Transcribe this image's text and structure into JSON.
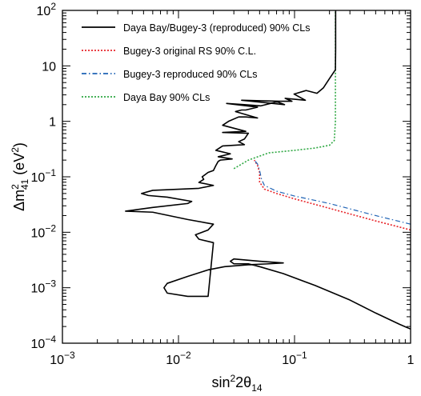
{
  "chart_data": {
    "type": "line",
    "xlabel": "sin²2θ₁₄",
    "ylabel": "Δm²₄₁ (eV²)",
    "xscale": "log",
    "yscale": "log",
    "xlim": [
      0.001,
      1
    ],
    "ylim": [
      0.0001,
      100
    ],
    "x_ticks": [
      {
        "value": 0.001,
        "base": "10",
        "exp": "−3"
      },
      {
        "value": 0.01,
        "base": "10",
        "exp": "−2"
      },
      {
        "value": 0.1,
        "base": "10",
        "exp": "−1"
      },
      {
        "value": 1,
        "base": "1",
        "exp": ""
      }
    ],
    "y_ticks": [
      {
        "value": 0.0001,
        "base": "10",
        "exp": "−4"
      },
      {
        "value": 0.001,
        "base": "10",
        "exp": "−3"
      },
      {
        "value": 0.01,
        "base": "10",
        "exp": "−2"
      },
      {
        "value": 0.1,
        "base": "10",
        "exp": "−1"
      },
      {
        "value": 1,
        "base": "1",
        "exp": ""
      },
      {
        "value": 10,
        "base": "10",
        "exp": ""
      },
      {
        "value": 100,
        "base": "10",
        "exp": "2"
      }
    ],
    "legend_position": "top-right",
    "series": [
      {
        "name": "Daya Bay/Bugey-3 (reproduced) 90% CLs",
        "color": "#000000",
        "style": "solid",
        "x": [
          1,
          0.8,
          0.5,
          0.3,
          0.15,
          0.08,
          0.05,
          0.04,
          0.035,
          0.03,
          0.028,
          0.03,
          0.05,
          0.08,
          0.06,
          0.04,
          0.025,
          0.018,
          0.012,
          0.008,
          0.0075,
          0.008,
          0.012,
          0.018,
          0.02,
          0.015,
          0.014,
          0.018,
          0.02,
          0.012,
          0.006,
          0.0035,
          0.006,
          0.012,
          0.013,
          0.008,
          0.0055,
          0.0048,
          0.006,
          0.015,
          0.02,
          0.015,
          0.0165,
          0.016,
          0.018,
          0.02,
          0.021,
          0.022,
          0.023,
          0.029,
          0.022,
          0.028,
          0.021,
          0.024,
          0.037,
          0.033,
          0.037,
          0.04,
          0.024,
          0.038,
          0.024,
          0.027,
          0.033,
          0.038,
          0.048,
          0.031,
          0.035,
          0.038,
          0.048,
          0.026,
          0.037,
          0.051,
          0.074,
          0.035,
          0.082,
          0.069,
          0.095,
          0.083,
          0.124,
          0.099,
          0.126,
          0.156,
          0.177,
          0.199,
          0.225,
          0.226,
          0.226,
          0.226
        ],
        "y": [
          0.00018,
          0.00022,
          0.00035,
          0.0006,
          0.0011,
          0.0018,
          0.0024,
          0.0027,
          0.0027,
          0.0027,
          0.003,
          0.0033,
          0.003,
          0.0028,
          0.0027,
          0.0026,
          0.0024,
          0.0021,
          0.0016,
          0.0012,
          0.001,
          0.0008,
          0.0007,
          0.0007,
          0.0065,
          0.0075,
          0.009,
          0.011,
          0.014,
          0.017,
          0.023,
          0.024,
          0.028,
          0.033,
          0.036,
          0.043,
          0.046,
          0.05,
          0.057,
          0.062,
          0.07,
          0.079,
          0.09,
          0.1,
          0.12,
          0.13,
          0.16,
          0.19,
          0.2,
          0.21,
          0.23,
          0.26,
          0.3,
          0.36,
          0.38,
          0.43,
          0.48,
          0.61,
          0.63,
          0.66,
          0.85,
          1.0,
          1.2,
          1.2,
          1.15,
          1.5,
          1.6,
          1.6,
          1.8,
          2.1,
          2.0,
          1.9,
          2.3,
          2.4,
          2.0,
          2.3,
          2.3,
          2.6,
          2.4,
          3.1,
          3.6,
          3.2,
          4.0,
          5.8,
          8.5,
          20,
          50,
          100
        ]
      },
      {
        "name": "Bugey-3 original RS 90% C.L.",
        "color": "#e8262b",
        "style": "dotted",
        "x": [
          1,
          0.5,
          0.2,
          0.1,
          0.07,
          0.055,
          0.05,
          0.05,
          0.048,
          0.045
        ],
        "y": [
          0.011,
          0.016,
          0.027,
          0.04,
          0.05,
          0.06,
          0.08,
          0.12,
          0.16,
          0.2
        ]
      },
      {
        "name": "Bugey-3 reproduced 90% CLs",
        "color": "#1f63b5",
        "style": "dashdot",
        "x": [
          1,
          0.5,
          0.2,
          0.1,
          0.07,
          0.055,
          0.052,
          0.05,
          0.048,
          0.045
        ],
        "y": [
          0.014,
          0.02,
          0.033,
          0.045,
          0.055,
          0.07,
          0.09,
          0.13,
          0.17,
          0.2
        ]
      },
      {
        "name": "Daya Bay 90% CLs",
        "color": "#2fa843",
        "style": "dotted",
        "x": [
          0.03,
          0.04,
          0.06,
          0.1,
          0.15,
          0.2,
          0.22,
          0.225,
          0.225,
          0.225,
          0.225
        ],
        "y": [
          0.14,
          0.2,
          0.27,
          0.3,
          0.33,
          0.37,
          0.45,
          1.0,
          3.0,
          10,
          100
        ]
      }
    ]
  }
}
